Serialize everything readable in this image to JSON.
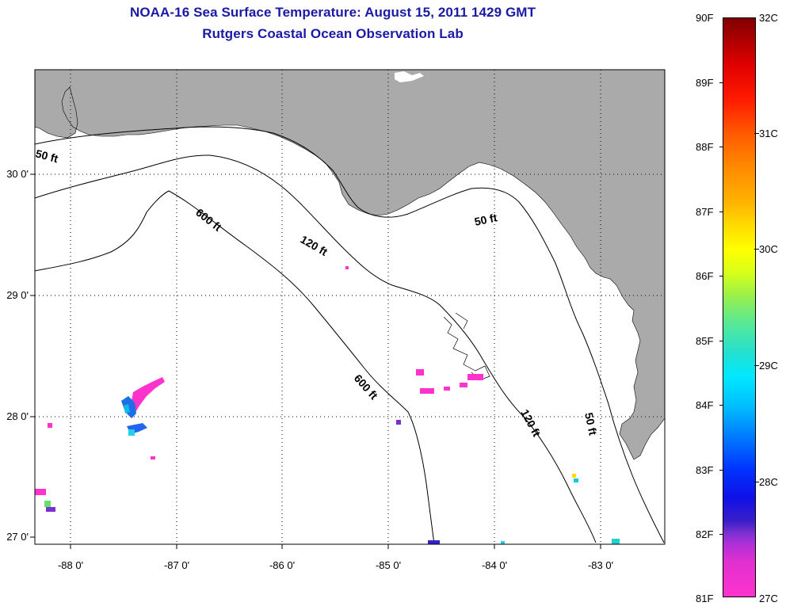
{
  "header": {
    "title_line1": "NOAA-16 Sea Surface Temperature:  August 15, 2011 1429 GMT",
    "title_line2": "Rutgers Coastal Ocean Observation Lab"
  },
  "map": {
    "lat_labels": [
      "30 0'",
      "29 0'",
      "28 0'",
      "27 0'"
    ],
    "lon_labels": [
      "-88 0'",
      "-87 0'",
      "-86 0'",
      "-85 0'",
      "-84 0'",
      "-83 0'"
    ],
    "contour_labels": [
      {
        "text": "50 ft",
        "name": "contour-label-50ft-west"
      },
      {
        "text": "600 ft",
        "name": "contour-label-600ft-north"
      },
      {
        "text": "120 ft",
        "name": "contour-label-120ft-north"
      },
      {
        "text": "50 ft",
        "name": "contour-label-50ft-bigbend"
      },
      {
        "text": "600 ft",
        "name": "contour-label-600ft-south"
      },
      {
        "text": "120 ft",
        "name": "contour-label-120ft-south"
      },
      {
        "text": "50 ft",
        "name": "contour-label-50ft-south"
      }
    ],
    "colors": {
      "land": "#aaaaaa",
      "ocean": "#ffffff",
      "contour": "#000000",
      "title": "#1a1aa6"
    }
  },
  "colorbar": {
    "fahrenheit_labels": [
      "90F",
      "89F",
      "88F",
      "87F",
      "86F",
      "85F",
      "84F",
      "83F",
      "82F",
      "81F"
    ],
    "celsius_labels": [
      "32C",
      "31C",
      "30C",
      "29C",
      "28C",
      "27C"
    ],
    "range_f": [
      81,
      90
    ],
    "range_c": [
      27,
      32
    ]
  }
}
